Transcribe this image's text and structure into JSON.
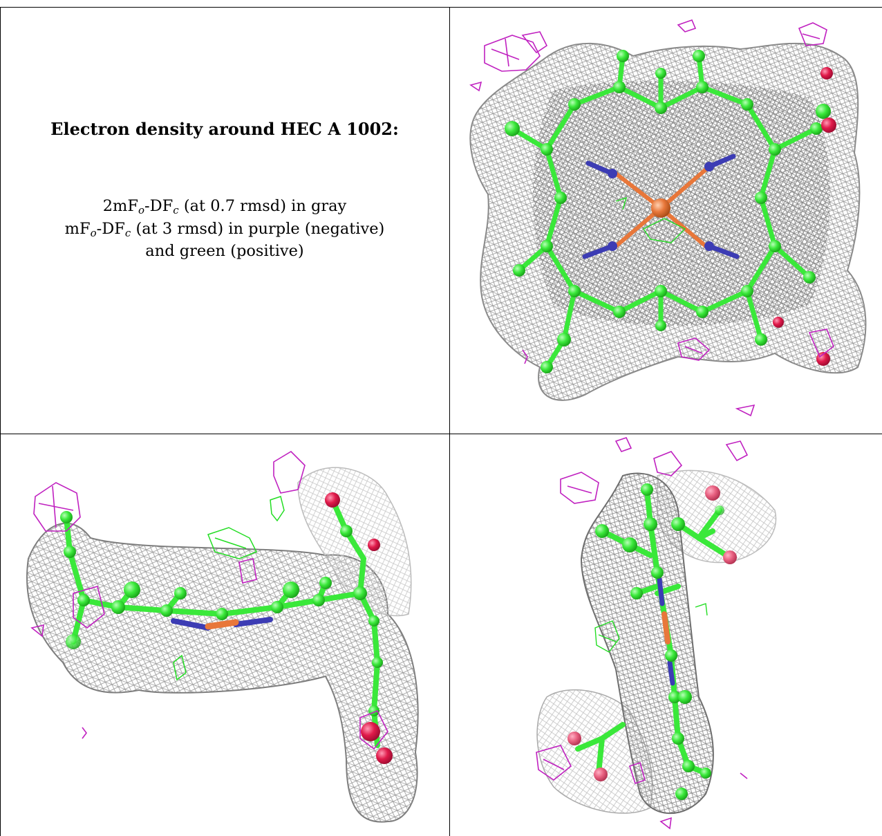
{
  "caption": {
    "title": "Electron density around HEC A 1002:",
    "line1_a": "2mF",
    "line1_sub1": "o",
    "line1_b": "-DF",
    "line1_sub2": "c",
    "line1_c": " (at 0.7 rmsd) in gray",
    "line2_a": "mF",
    "line2_sub1": "o",
    "line2_b": "-DF",
    "line2_sub2": "c",
    "line2_c": " (at 3 rmsd) in purple (negative)",
    "line3": "and green (positive)"
  },
  "colors": {
    "mesh_gray": "#8c8c8c",
    "carbon_green": "#33e633",
    "nitrogen_blue": "#3c3cb4",
    "iron_orange": "#e8773a",
    "oxygen_red": "#e01a4a",
    "negative_purple": "#c020c0",
    "positive_green": "#22dd22"
  },
  "panels": [
    {
      "view": "top-down porphyrin ring view"
    },
    {
      "view": "edge-on side view"
    },
    {
      "view": "rotated edge-on view"
    }
  ]
}
